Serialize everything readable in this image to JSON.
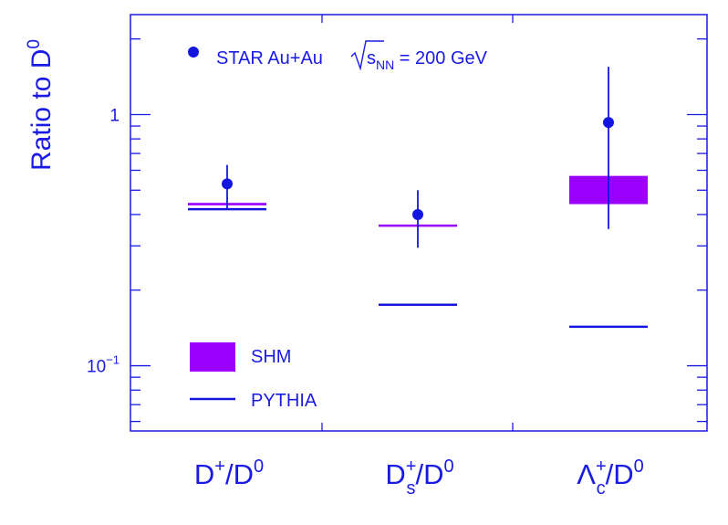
{
  "chart_data": {
    "type": "scatter",
    "ylabel": {
      "base": "Ratio to D",
      "sup": "0"
    },
    "yscale": "log",
    "ylim": [
      0.055,
      2.5
    ],
    "yticks": [
      {
        "value": 1,
        "label": "1",
        "sup": ""
      },
      {
        "value": 0.1,
        "label": "10",
        "sup": "−1"
      }
    ],
    "categories": [
      {
        "main": "D",
        "sup": "+",
        "sub": "",
        "den": "/D",
        "den_sup": "0"
      },
      {
        "main": "D",
        "sup": "+",
        "sub": "s",
        "den": "/D",
        "den_sup": "0"
      },
      {
        "main": "Λ",
        "sup": "+",
        "sub": "c",
        "den": "/D",
        "den_sup": "0"
      }
    ],
    "series": [
      {
        "name": "STAR Au+Au",
        "name_sqrt": "s",
        "name_sub": "NN",
        "name_suffix": " = 200 GeV",
        "kind": "points",
        "values": [
          0.53,
          0.4,
          0.93
        ],
        "err_low": [
          0.42,
          0.295,
          0.35
        ],
        "err_high": [
          0.63,
          0.5,
          1.55
        ]
      },
      {
        "name": "SHM",
        "kind": "band",
        "low": [
          0.435,
          0.36,
          0.44
        ],
        "high": [
          0.445,
          0.365,
          0.57
        ]
      },
      {
        "name": "PYTHIA",
        "kind": "lines",
        "values": [
          0.42,
          0.175,
          0.143
        ]
      }
    ],
    "legend_placement": "top-left (data), bottom-left (models)",
    "grid": false,
    "colors": {
      "axis": "#1a1ae6",
      "data": "#1515e0",
      "shm": "#9b00ff",
      "pythia": "#1515e0"
    }
  }
}
